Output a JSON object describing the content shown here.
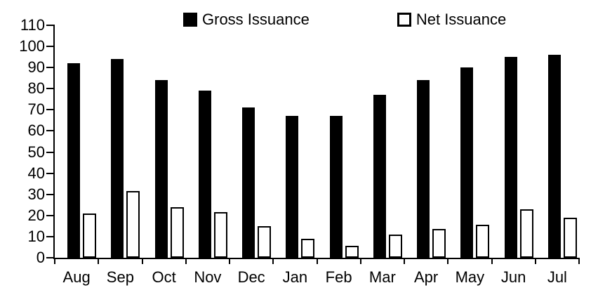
{
  "legend": {
    "gross_label": "Gross Issuance",
    "net_label": "Net Issuance"
  },
  "chart_data": {
    "type": "bar",
    "title": "",
    "xlabel": "",
    "ylabel": "",
    "categories": [
      "Aug",
      "Sep",
      "Oct",
      "Nov",
      "Dec",
      "Jan",
      "Feb",
      "Mar",
      "Apr",
      "May",
      "Jun",
      "Jul"
    ],
    "series": [
      {
        "name": "Gross Issuance",
        "color": "#000000",
        "style": "solid",
        "values": [
          92,
          94,
          84,
          79,
          71,
          67,
          67,
          77,
          84,
          90,
          95,
          96
        ]
      },
      {
        "name": "Net Issuance",
        "color": "#ffffff",
        "border_color": "#000000",
        "style": "outlined",
        "values": [
          21,
          31.5,
          24,
          21.5,
          15,
          9,
          5.5,
          11,
          13.5,
          15.5,
          23,
          19
        ]
      }
    ],
    "ylim": [
      0,
      110
    ],
    "ytick_step": 10,
    "grid": false,
    "legend_position": "top"
  }
}
